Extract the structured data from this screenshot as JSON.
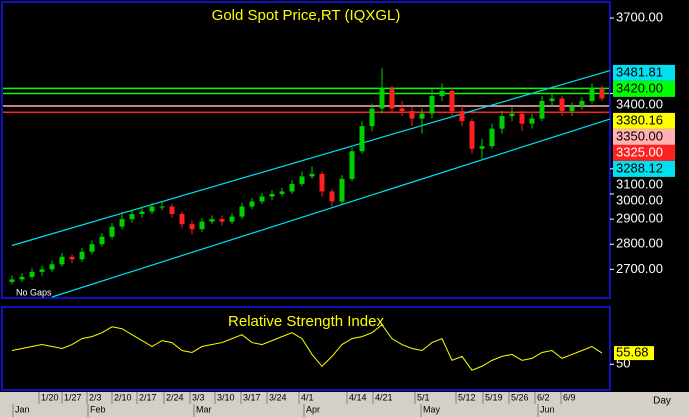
{
  "chart_data": [
    {
      "type": "candlestick",
      "title": "Gold Spot Price,RT (IQXGL)",
      "annotation": "No Gaps",
      "up_color": "#00d000",
      "down_color": "#ff2020",
      "ylim": [
        2590,
        3760
      ],
      "yticks": [
        {
          "value": 3700,
          "label": "3700.00"
        },
        {
          "value": 3400,
          "label": "3400.00"
        },
        {
          "value": 3100,
          "label": "3100.00"
        },
        {
          "value": 3000,
          "label": "3000.00"
        },
        {
          "value": 2900,
          "label": "2900.00"
        },
        {
          "value": 2800,
          "label": "2800.00"
        },
        {
          "value": 2700,
          "label": "2700.00"
        }
      ],
      "xlim": [
        0,
        59
      ],
      "ohlc": [
        [
          2650,
          2675,
          2640,
          2660
        ],
        [
          2660,
          2685,
          2650,
          2670
        ],
        [
          2670,
          2705,
          2660,
          2690
        ],
        [
          2690,
          2715,
          2675,
          2700
        ],
        [
          2700,
          2735,
          2690,
          2720
        ],
        [
          2720,
          2765,
          2710,
          2750
        ],
        [
          2750,
          2760,
          2725,
          2740
        ],
        [
          2740,
          2785,
          2730,
          2770
        ],
        [
          2770,
          2815,
          2760,
          2800
        ],
        [
          2800,
          2845,
          2790,
          2830
        ],
        [
          2830,
          2885,
          2820,
          2870
        ],
        [
          2870,
          2930,
          2860,
          2900
        ],
        [
          2900,
          2935,
          2885,
          2920
        ],
        [
          2920,
          2950,
          2905,
          2930
        ],
        [
          2930,
          2965,
          2920,
          2950
        ],
        [
          2950,
          2970,
          2935,
          2950
        ],
        [
          2950,
          2960,
          2905,
          2920
        ],
        [
          2920,
          2930,
          2865,
          2880
        ],
        [
          2880,
          2895,
          2840,
          2860
        ],
        [
          2860,
          2905,
          2850,
          2890
        ],
        [
          2890,
          2915,
          2880,
          2900
        ],
        [
          2900,
          2915,
          2875,
          2890
        ],
        [
          2890,
          2925,
          2880,
          2910
        ],
        [
          2910,
          2965,
          2900,
          2950
        ],
        [
          2950,
          2985,
          2940,
          2970
        ],
        [
          2970,
          3005,
          2960,
          2990
        ],
        [
          2990,
          3015,
          2975,
          3000
        ],
        [
          3000,
          3025,
          2990,
          3010
        ],
        [
          3010,
          3055,
          3000,
          3040
        ],
        [
          3040,
          3090,
          3030,
          3070
        ],
        [
          3070,
          3110,
          3060,
          3080
        ],
        [
          3080,
          3090,
          2990,
          3010
        ],
        [
          3010,
          3020,
          2950,
          2970
        ],
        [
          2970,
          3075,
          2960,
          3060
        ],
        [
          3060,
          3185,
          3050,
          3170
        ],
        [
          3170,
          3290,
          3160,
          3270
        ],
        [
          3270,
          3360,
          3250,
          3340
        ],
        [
          3340,
          3500,
          3320,
          3420
        ],
        [
          3420,
          3430,
          3320,
          3340
        ],
        [
          3340,
          3370,
          3310,
          3330
        ],
        [
          3330,
          3345,
          3270,
          3300
        ],
        [
          3300,
          3340,
          3240,
          3320
        ],
        [
          3320,
          3420,
          3300,
          3390
        ],
        [
          3390,
          3440,
          3370,
          3410
        ],
        [
          3410,
          3420,
          3310,
          3330
        ],
        [
          3330,
          3350,
          3270,
          3290
        ],
        [
          3290,
          3300,
          3160,
          3180
        ],
        [
          3180,
          3220,
          3140,
          3190
        ],
        [
          3190,
          3280,
          3180,
          3260
        ],
        [
          3260,
          3330,
          3240,
          3310
        ],
        [
          3310,
          3345,
          3290,
          3320
        ],
        [
          3320,
          3330,
          3250,
          3280
        ],
        [
          3280,
          3320,
          3260,
          3300
        ],
        [
          3300,
          3390,
          3290,
          3370
        ],
        [
          3370,
          3400,
          3350,
          3380
        ],
        [
          3380,
          3390,
          3310,
          3330
        ],
        [
          3330,
          3365,
          3310,
          3350
        ],
        [
          3350,
          3385,
          3335,
          3370
        ],
        [
          3370,
          3440,
          3360,
          3420
        ],
        [
          3420,
          3430,
          3370,
          3380.16
        ]
      ],
      "last_label": "3380.16",
      "last_color": "#ffff00",
      "hlines": [
        {
          "value": 3420,
          "label": "3420.00",
          "color": "#00ff00"
        },
        {
          "value": 3400,
          "color": "#00ff00"
        },
        {
          "value": 3350,
          "label": "3350.00",
          "color": "#ffb0b0"
        },
        {
          "value": 3325,
          "label": "3325.00",
          "color": "#ff2020"
        }
      ],
      "channels": [
        {
          "x": [
            0,
            59
          ],
          "values": [
            2795,
            3481.81
          ],
          "end_label": "3481.81",
          "color": "#00e0f0"
        },
        {
          "x": [
            4,
            59
          ],
          "values": [
            2590,
            3288.12
          ],
          "end_label": "3288.12",
          "color": "#00e0f0"
        }
      ]
    },
    {
      "type": "line",
      "title": "Relative Strength Index",
      "color": "#ffff00",
      "ylim": [
        38,
        78
      ],
      "yticks": [
        50
      ],
      "xlim": [
        0,
        59
      ],
      "last_label": "55.68",
      "x_label": "Day",
      "values": [
        57,
        58,
        59,
        60,
        59,
        58,
        60,
        63,
        64,
        66,
        69,
        68,
        65,
        62,
        59,
        62,
        61,
        57,
        56,
        59,
        60,
        61,
        63,
        65,
        61,
        60,
        62,
        64,
        66,
        63,
        55,
        49,
        54,
        60,
        63,
        64,
        66,
        70,
        63,
        60,
        58,
        57,
        61,
        63,
        52,
        54,
        47,
        49,
        52,
        54,
        55,
        52,
        53,
        56,
        57,
        53,
        55,
        57,
        59,
        55.68
      ],
      "xticks": [
        {
          "value": 3.3,
          "label": "1/20"
        },
        {
          "value": 5.6,
          "label": "1/27"
        },
        {
          "value": 8.1,
          "label": "2/3"
        },
        {
          "value": 10.6,
          "label": "2/10"
        },
        {
          "value": 13.1,
          "label": "2/17"
        },
        {
          "value": 15.8,
          "label": "2/24"
        },
        {
          "value": 18.4,
          "label": "3/3"
        },
        {
          "value": 20.9,
          "label": "3/10"
        },
        {
          "value": 23.5,
          "label": "3/17"
        },
        {
          "value": 26.1,
          "label": "3/24"
        },
        {
          "value": 29.3,
          "label": "4/1"
        },
        {
          "value": 34.1,
          "label": "4/14"
        },
        {
          "value": 36.7,
          "label": "4/21"
        },
        {
          "value": 40.9,
          "label": "5/1"
        },
        {
          "value": 45,
          "label": "5/12"
        },
        {
          "value": 47.7,
          "label": "5/19"
        },
        {
          "value": 50.3,
          "label": "5/26"
        },
        {
          "value": 52.9,
          "label": "6/2"
        },
        {
          "value": 55.5,
          "label": "6/9"
        }
      ],
      "months": [
        {
          "value": 0.3,
          "label": "Jan"
        },
        {
          "value": 7.8,
          "label": "Feb"
        },
        {
          "value": 18.4,
          "label": "Mar"
        },
        {
          "value": 29.4,
          "label": "Apr"
        },
        {
          "value": 41.1,
          "label": "May"
        },
        {
          "value": 52.8,
          "label": "Jun"
        }
      ]
    }
  ]
}
